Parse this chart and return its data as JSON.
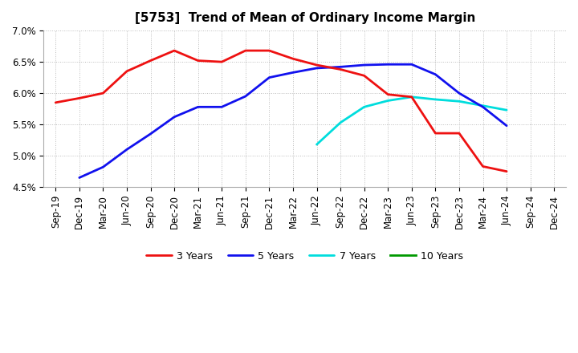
{
  "title": "[5753]  Trend of Mean of Ordinary Income Margin",
  "x_labels": [
    "Sep-19",
    "Dec-19",
    "Mar-20",
    "Jun-20",
    "Sep-20",
    "Dec-20",
    "Mar-21",
    "Jun-21",
    "Sep-21",
    "Dec-21",
    "Mar-22",
    "Jun-22",
    "Sep-22",
    "Dec-22",
    "Mar-23",
    "Jun-23",
    "Sep-23",
    "Dec-23",
    "Mar-24",
    "Jun-24",
    "Sep-24",
    "Dec-24"
  ],
  "y_min": 0.045,
  "y_max": 0.07,
  "y_ticks": [
    0.045,
    0.05,
    0.055,
    0.06,
    0.065,
    0.07
  ],
  "y_tick_labels": [
    "4.5%",
    "5.0%",
    "5.5%",
    "6.0%",
    "6.5%",
    "7.0%"
  ],
  "series_3y": {
    "color": "#EE1111",
    "linewidth": 2.0,
    "label": "3 Years",
    "values": [
      0.0585,
      0.0592,
      0.06,
      0.0635,
      0.0652,
      0.0668,
      0.0652,
      0.065,
      0.0668,
      0.0668,
      0.0655,
      0.0645,
      0.0638,
      0.0628,
      0.0598,
      0.0594,
      0.0536,
      0.0536,
      0.0483,
      0.0475,
      null,
      null
    ]
  },
  "series_5y": {
    "color": "#1111EE",
    "linewidth": 2.0,
    "label": "5 Years",
    "values": [
      null,
      0.0465,
      0.0482,
      0.051,
      0.0535,
      0.0562,
      0.0578,
      0.0578,
      0.0595,
      0.0625,
      0.0633,
      0.064,
      0.0642,
      0.0645,
      0.0646,
      0.0646,
      0.063,
      0.06,
      0.0578,
      0.0548,
      null,
      null
    ]
  },
  "series_7y": {
    "color": "#00DDDD",
    "linewidth": 2.0,
    "label": "7 Years",
    "values": [
      null,
      null,
      null,
      null,
      null,
      null,
      null,
      null,
      null,
      null,
      null,
      0.0518,
      0.0553,
      0.0578,
      0.0588,
      0.0594,
      0.059,
      0.0587,
      0.058,
      0.0573,
      null,
      null
    ]
  },
  "series_10y": {
    "color": "#009900",
    "linewidth": 2.0,
    "label": "10 Years",
    "values": [
      null,
      null,
      null,
      null,
      null,
      null,
      null,
      null,
      null,
      null,
      null,
      null,
      null,
      null,
      null,
      null,
      null,
      null,
      null,
      null,
      null,
      null
    ]
  },
  "background_color": "#FFFFFF",
  "plot_bg_color": "#FFFFFF",
  "grid_color": "#BBBBBB",
  "title_fontsize": 11,
  "tick_fontsize": 8.5,
  "legend_fontsize": 9
}
